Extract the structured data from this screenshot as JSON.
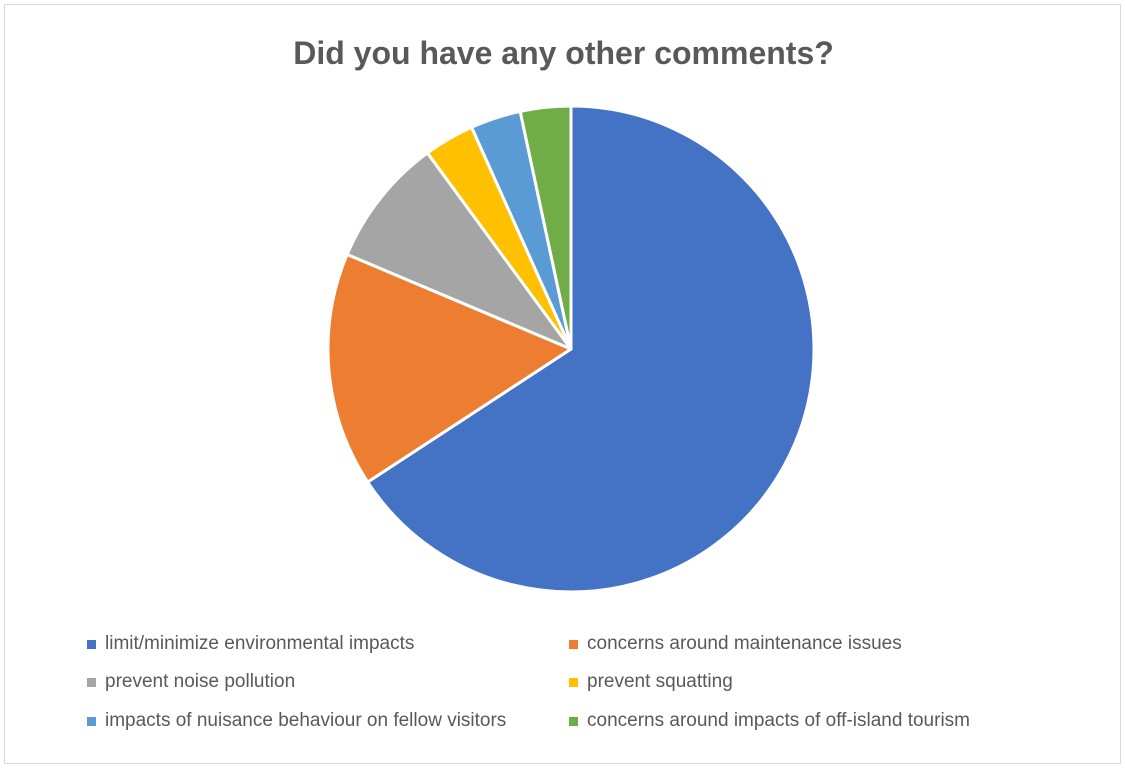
{
  "chart_data": {
    "type": "pie",
    "title": "Did you have any other comments?",
    "slices": [
      {
        "label": "limit/minimize environmental impacts",
        "value": 66.7,
        "color": "#4472C4"
      },
      {
        "label": "concerns around maintenance issues",
        "value": 15.8,
        "color": "#ED7D31"
      },
      {
        "label": "prevent noise pollution",
        "value": 8.7,
        "color": "#A5A5A5"
      },
      {
        "label": "prevent squatting",
        "value": 3.4,
        "color": "#FFC000"
      },
      {
        "label": "impacts of nuisance behaviour on fellow visitors",
        "value": 3.4,
        "color": "#5B9BD5"
      },
      {
        "label": "concerns around impacts of off-island tourism",
        "value": 3.4,
        "color": "#70AD47"
      }
    ],
    "legend_position": "bottom",
    "start_angle": "top, clockwise"
  }
}
